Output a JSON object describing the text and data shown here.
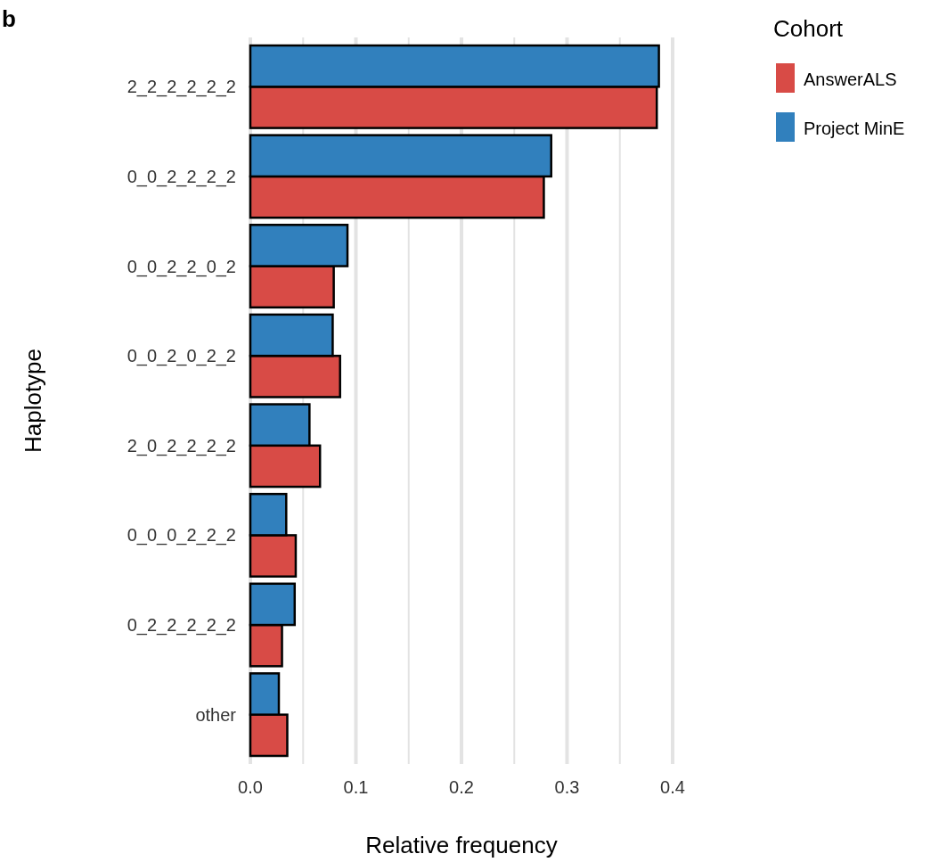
{
  "chart_data": {
    "type": "bar",
    "orientation": "horizontal",
    "xlabel": "Relative frequency",
    "ylabel": "Haplotype",
    "legend_title": "Cohort",
    "legend": "right",
    "annotations": [
      "b"
    ],
    "categories": [
      "2_2_2_2_2_2",
      "0_0_2_2_2_2",
      "0_0_2_2_0_2",
      "0_0_2_0_2_2",
      "2_0_2_2_2_2",
      "0_0_0_2_2_2",
      "0_2_2_2_2_2",
      "other"
    ],
    "series": [
      {
        "name": "AnswerALS",
        "color": "#d84b46",
        "values": [
          0.385,
          0.278,
          0.079,
          0.085,
          0.066,
          0.043,
          0.03,
          0.035
        ]
      },
      {
        "name": "Project MinE",
        "color": "#3180bd",
        "values": [
          0.387,
          0.285,
          0.092,
          0.078,
          0.056,
          0.034,
          0.042,
          0.027
        ]
      }
    ],
    "xlim": [
      0,
      0.4
    ],
    "xticks": [
      {
        "value": 0,
        "label": "0.0"
      },
      {
        "value": 0.05,
        "label": null
      },
      0.1,
      {
        "value": 0.15,
        "label": null
      },
      0.2,
      {
        "value": 0.25,
        "label": null
      },
      0.3,
      {
        "value": 0.35,
        "label": null
      },
      0.4
    ],
    "grid": "x"
  }
}
